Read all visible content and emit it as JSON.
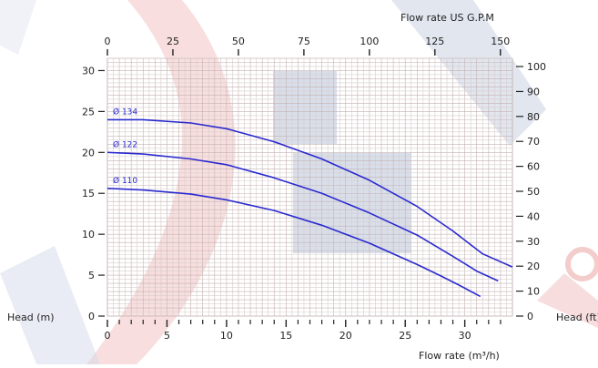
{
  "chart_data": {
    "type": "line",
    "title": "",
    "x_top_label": "Flow rate US  G.P.M",
    "xlabel": "Flow rate  (m³/h)",
    "ylabel_left": "Head (m)",
    "ylabel_right": "Head (ft)",
    "x_bottom_ticks": [
      "0",
      "5",
      "10",
      "15",
      "20",
      "25",
      "30"
    ],
    "x_top_ticks": [
      "0",
      "25",
      "50",
      "75",
      "100",
      "125",
      "150"
    ],
    "y_left_ticks": [
      "0",
      "5",
      "10",
      "15",
      "20",
      "25",
      "30"
    ],
    "y_right_ticks": [
      "0",
      "10",
      "20",
      "30",
      "40",
      "50",
      "60",
      "70",
      "80",
      "90",
      "100"
    ],
    "x_bottom_range": [
      0,
      34
    ],
    "x_top_range": [
      0,
      154.6
    ],
    "y_left_range": [
      0,
      31.5
    ],
    "y_right_range": [
      0,
      103.3
    ],
    "grid": true,
    "series_color": "#2a2ad0",
    "series": [
      {
        "name": "Ø 134",
        "x": [
          0,
          3,
          7,
          10,
          14,
          18,
          22,
          26,
          29,
          31.5,
          34
        ],
        "y": [
          24,
          24,
          23.6,
          22.9,
          21.3,
          19.2,
          16.6,
          13.4,
          10.4,
          7.6,
          6.0
        ]
      },
      {
        "name": "Ø 122",
        "x": [
          0,
          3,
          7,
          10,
          14,
          18,
          22,
          26,
          29,
          31,
          32.8
        ],
        "y": [
          20,
          19.8,
          19.2,
          18.5,
          16.9,
          15.0,
          12.6,
          9.9,
          7.3,
          5.5,
          4.3
        ]
      },
      {
        "name": "Ø 110",
        "x": [
          0,
          3,
          7,
          10,
          14,
          18,
          22,
          26,
          28,
          29.5,
          31.3
        ],
        "y": [
          15.6,
          15.4,
          14.9,
          14.2,
          12.9,
          11.1,
          8.9,
          6.3,
          4.9,
          3.8,
          2.4
        ]
      }
    ]
  }
}
